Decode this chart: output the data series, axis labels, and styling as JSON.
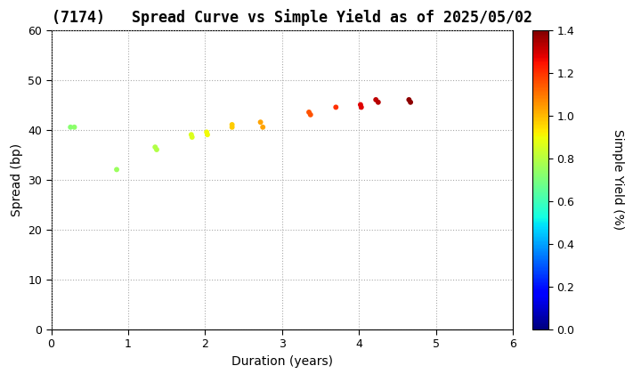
{
  "title": "(7174)   Spread Curve vs Simple Yield as of 2025/05/02",
  "xlabel": "Duration (years)",
  "ylabel": "Spread (bp)",
  "colorbar_label": "Simple Yield (%)",
  "xlim": [
    0,
    6
  ],
  "ylim": [
    0,
    60
  ],
  "xticks": [
    0,
    1,
    2,
    3,
    4,
    5,
    6
  ],
  "yticks": [
    0,
    10,
    20,
    30,
    40,
    50,
    60
  ],
  "cmap_vmin": 0.0,
  "cmap_vmax": 1.4,
  "cmap_ticks": [
    0.0,
    0.2,
    0.4,
    0.6,
    0.8,
    1.0,
    1.2,
    1.4
  ],
  "points": [
    {
      "duration": 0.25,
      "spread": 40.5,
      "simple_yield": 0.72
    },
    {
      "duration": 0.3,
      "spread": 40.5,
      "simple_yield": 0.73
    },
    {
      "duration": 0.85,
      "spread": 32.0,
      "simple_yield": 0.75
    },
    {
      "duration": 1.35,
      "spread": 36.5,
      "simple_yield": 0.79
    },
    {
      "duration": 1.37,
      "spread": 36.0,
      "simple_yield": 0.79
    },
    {
      "duration": 1.82,
      "spread": 39.0,
      "simple_yield": 0.86
    },
    {
      "duration": 1.83,
      "spread": 38.5,
      "simple_yield": 0.86
    },
    {
      "duration": 2.02,
      "spread": 39.5,
      "simple_yield": 0.9
    },
    {
      "duration": 2.03,
      "spread": 39.0,
      "simple_yield": 0.9
    },
    {
      "duration": 2.35,
      "spread": 41.0,
      "simple_yield": 0.97
    },
    {
      "duration": 2.35,
      "spread": 40.5,
      "simple_yield": 0.97
    },
    {
      "duration": 2.72,
      "spread": 41.5,
      "simple_yield": 1.03
    },
    {
      "duration": 2.75,
      "spread": 40.5,
      "simple_yield": 1.03
    },
    {
      "duration": 3.35,
      "spread": 43.5,
      "simple_yield": 1.15
    },
    {
      "duration": 3.37,
      "spread": 43.0,
      "simple_yield": 1.15
    },
    {
      "duration": 3.7,
      "spread": 44.5,
      "simple_yield": 1.2
    },
    {
      "duration": 4.02,
      "spread": 45.0,
      "simple_yield": 1.28
    },
    {
      "duration": 4.03,
      "spread": 44.5,
      "simple_yield": 1.28
    },
    {
      "duration": 4.22,
      "spread": 46.0,
      "simple_yield": 1.32
    },
    {
      "duration": 4.25,
      "spread": 45.5,
      "simple_yield": 1.33
    },
    {
      "duration": 4.65,
      "spread": 46.0,
      "simple_yield": 1.38
    },
    {
      "duration": 4.67,
      "spread": 45.5,
      "simple_yield": 1.38
    }
  ],
  "marker_size": 18,
  "background_color": "#ffffff",
  "grid_color": "#aaaaaa",
  "title_fontsize": 12,
  "label_fontsize": 10,
  "tick_fontsize": 9
}
